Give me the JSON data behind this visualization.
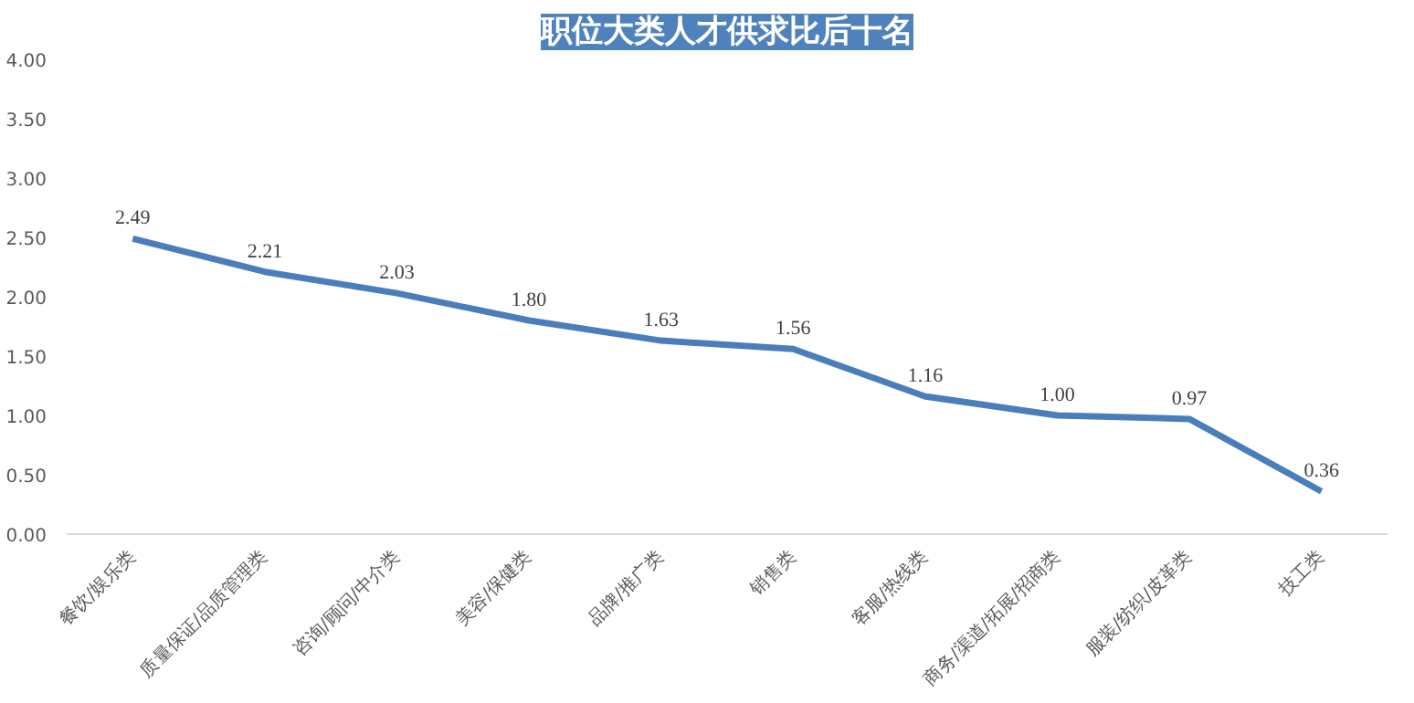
{
  "chart_data": {
    "type": "line",
    "title": "职位大类人才供求比后十名",
    "categories": [
      "餐饮/娱乐类",
      "质量保证/品质管理类",
      "咨询/顾问/中介类",
      "美容/保健类",
      "品牌/推广类",
      "销售类",
      "客服/热线类",
      "商务/渠道/拓展/招商类",
      "服装/纺织/皮革类",
      "技工类"
    ],
    "series": [
      {
        "color": "#4a7ebb",
        "values": [
          2.49,
          2.21,
          2.03,
          1.8,
          1.63,
          1.56,
          1.16,
          1.0,
          0.97,
          0.36
        ],
        "value_labels": [
          "2.49",
          "2.21",
          "2.03",
          "1.80",
          "1.63",
          "1.56",
          "1.16",
          "1.00",
          "0.97",
          "0.36"
        ]
      }
    ],
    "ylim": [
      0,
      4
    ],
    "yticks": [
      {
        "value": 0,
        "label": "0.00"
      },
      {
        "value": 0.5,
        "label": "0.50"
      },
      {
        "value": 1,
        "label": "1.00"
      },
      {
        "value": 1.5,
        "label": "1.50"
      },
      {
        "value": 2,
        "label": "2.00"
      },
      {
        "value": 2.5,
        "label": "2.50"
      },
      {
        "value": 3,
        "label": "3.00"
      },
      {
        "value": 3.5,
        "label": "3.50"
      },
      {
        "value": 4,
        "label": "4.00"
      }
    ],
    "grid": false,
    "marker": "none",
    "line_style": "solid"
  }
}
